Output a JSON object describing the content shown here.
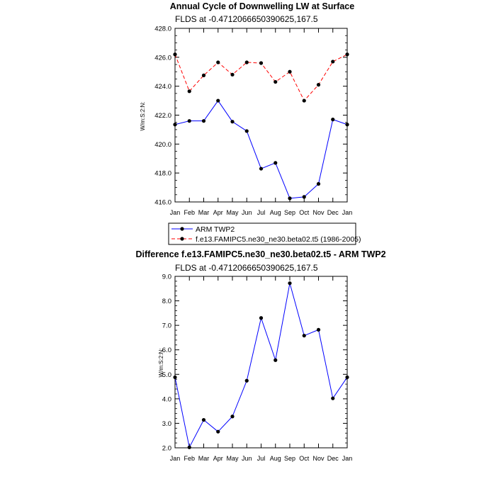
{
  "chart_data": [
    {
      "type": "line",
      "title": "Annual Cycle of Downwelling LW at Surface",
      "subtitle": "FLDS at -0.4712066650390625,167.5",
      "ylabel": "W/m:S:2:N:",
      "xlabel": "",
      "ylim": [
        416.0,
        428.0
      ],
      "yticks": [
        "416.0",
        "418.0",
        "420.0",
        "422.0",
        "424.0",
        "426.0",
        "428.0"
      ],
      "categories": [
        "Jan",
        "Feb",
        "Mar",
        "Apr",
        "May",
        "Jun",
        "Jul",
        "Aug",
        "Sep",
        "Oct",
        "Nov",
        "Dec",
        "Jan"
      ],
      "series": [
        {
          "name": "ARM TWP2",
          "color": "#0000ff",
          "dash": "solid",
          "values": [
            421.35,
            421.6,
            421.6,
            423.0,
            421.55,
            420.9,
            418.3,
            418.7,
            416.25,
            416.35,
            417.25,
            421.7,
            421.35
          ]
        },
        {
          "name": "f.e13.FAMIPC5.ne30_ne30.beta02.t5 (1986-2005)",
          "color": "#ff0000",
          "dash": "dashed",
          "values": [
            426.2,
            423.65,
            424.75,
            425.65,
            424.8,
            425.65,
            425.6,
            424.3,
            425.0,
            423.0,
            424.1,
            425.7,
            426.2
          ]
        }
      ],
      "legend": {
        "position": "bottom",
        "entries": [
          "ARM TWP2",
          "f.e13.FAMIPC5.ne30_ne30.beta02.t5 (1986-2005)"
        ]
      }
    },
    {
      "type": "line",
      "title": "Difference f.e13.FAMIPC5.ne30_ne30.beta02.t5 - ARM TWP2",
      "subtitle": "FLDS at -0.4712066650390625,167.5",
      "ylabel": "W/m:S:2:N:",
      "xlabel": "",
      "ylim": [
        2.0,
        9.0
      ],
      "yticks": [
        "2.0",
        "3.0",
        "4.0",
        "5.0",
        "6.0",
        "7.0",
        "8.0",
        "9.0"
      ],
      "categories": [
        "Jan",
        "Feb",
        "Mar",
        "Apr",
        "May",
        "Jun",
        "Jul",
        "Aug",
        "Sep",
        "Oct",
        "Nov",
        "Dec",
        "Jan"
      ],
      "series": [
        {
          "name": "Difference",
          "color": "#0000ff",
          "dash": "solid",
          "values": [
            4.88,
            2.02,
            3.14,
            2.66,
            3.28,
            4.74,
            7.3,
            5.58,
            8.72,
            6.58,
            6.82,
            4.02,
            4.88
          ]
        }
      ]
    }
  ]
}
